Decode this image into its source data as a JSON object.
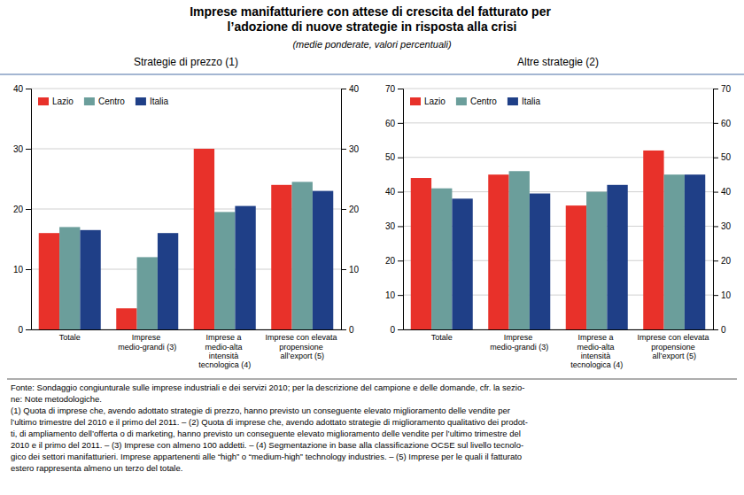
{
  "title": "Imprese manifatturiere con attese di crescita del fatturato per\nl’adozione di nuove strategie in risposta alla crisi",
  "subtitle": "(medie ponderate, valori percentuali)",
  "annotations": [
    "Fonte: Sondaggio congiunturale sulle imprese industriali e dei servizi 2010; per la descrizione del campione e delle domande, cfr. la sezio-",
    "ne: Note metodologiche.",
    "(1) Quota di imprese che, avendo adottato strategie di prezzo, hanno previsto un conseguente elevato miglioramento delle vendite per",
    "l’ultimo trimestre del 2010 e il primo del 2011. – (2) Quota di imprese che, avendo adottato strategie di miglioramento qualitativo dei prodot-",
    "ti, di ampliamento dell’offerta o di marketing, hanno previsto un conseguente elevato miglioramento delle vendite per l’ultimo trimestre del",
    "2010 e il primo del 2011. – (3) Imprese con almeno 100 addetti. – (4) Segmentazione in base alla classificazione OCSE sul livello tecnolo-",
    "gico dei settori manifatturieri. Imprese appartenenti alle “high” o “medium-high” technology industries. – (5) Imprese per le quali il fatturato",
    "estero rappresenta almeno un terzo del totale."
  ],
  "chart_data": [
    {
      "type": "bar",
      "title": "Strategie di prezzo (1)",
      "categories": [
        "Totale",
        "Imprese medio-grandi (3)",
        "Imprese a medio-alta\nintensità tecnologica (4)",
        "Imprese con elevata\npropensione all’export (5)"
      ],
      "series": [
        {
          "name": "Lazio",
          "color": "#e8312a",
          "values": [
            16.0,
            3.5,
            30.0,
            24.0
          ]
        },
        {
          "name": "Centro",
          "color": "#6b9e9b",
          "values": [
            17.0,
            12.0,
            19.5,
            24.5
          ]
        },
        {
          "name": "Italia",
          "color": "#1f3f87",
          "values": [
            16.5,
            16.0,
            20.5,
            23.0
          ]
        }
      ],
      "ylim": [
        0,
        40
      ],
      "yticks": [
        0,
        10,
        20,
        30,
        40
      ],
      "grid": true,
      "legend": "upper left"
    },
    {
      "type": "bar",
      "title": "Altre strategie (2)",
      "categories": [
        "Totale",
        "Imprese medio-grandi (3)",
        "Imprese a medio-alta\nintensità tecnologica (4)",
        "Imprese con elevata\npropensione all’export (5)"
      ],
      "series": [
        {
          "name": "Lazio",
          "color": "#e8312a",
          "values": [
            44.0,
            45.0,
            36.0,
            52.0
          ]
        },
        {
          "name": "Centro",
          "color": "#6b9e9b",
          "values": [
            41.0,
            46.0,
            40.0,
            45.0
          ]
        },
        {
          "name": "Italia",
          "color": "#1f3f87",
          "values": [
            38.0,
            39.5,
            42.0,
            45.0
          ]
        }
      ],
      "ylim": [
        0,
        70
      ],
      "yticks": [
        0,
        10,
        20,
        30,
        40,
        50,
        60,
        70
      ],
      "grid": true,
      "legend": "upper left"
    }
  ]
}
